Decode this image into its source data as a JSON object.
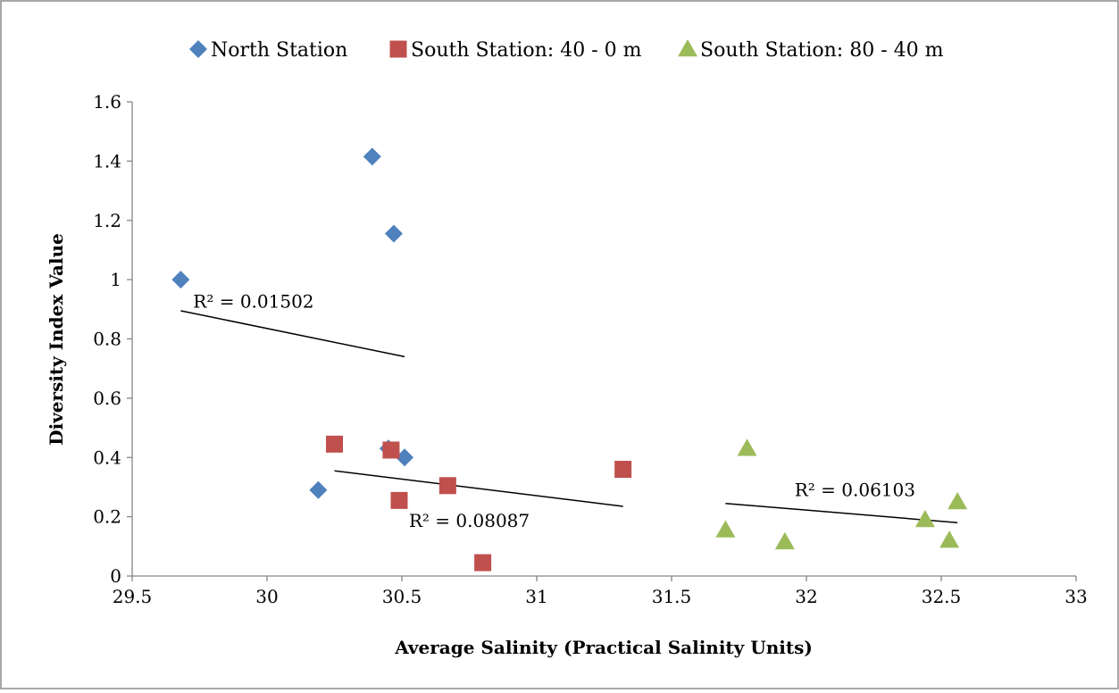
{
  "chart_data": {
    "type": "scatter",
    "xlabel": "Average Salinity (Practical Salinity Units)",
    "ylabel": "Diversity Index Value",
    "xlim": [
      29.5,
      33
    ],
    "ylim": [
      0,
      1.6
    ],
    "x_ticks": [
      "29.5",
      "30",
      "30.5",
      "31",
      "31.5",
      "32",
      "32.5",
      "33"
    ],
    "y_ticks": [
      "0",
      "0.2",
      "0.4",
      "0.6",
      "0.8",
      "1",
      "1.2",
      "1.4",
      "1.6"
    ],
    "grid": false,
    "legend_position": "top",
    "series": [
      {
        "name": "North Station",
        "marker": "diamond",
        "color": "#4F81BD",
        "points": [
          {
            "x": 29.68,
            "y": 1.0
          },
          {
            "x": 30.39,
            "y": 1.415
          },
          {
            "x": 30.47,
            "y": 1.155
          },
          {
            "x": 30.45,
            "y": 0.43
          },
          {
            "x": 30.51,
            "y": 0.4
          },
          {
            "x": 30.19,
            "y": 0.29
          }
        ],
        "trendline": {
          "x": [
            29.68,
            30.51
          ],
          "y": [
            0.895,
            0.74
          ]
        }
      },
      {
        "name": "South Station: 40 - 0 m",
        "marker": "square",
        "color": "#C0504D",
        "points": [
          {
            "x": 30.25,
            "y": 0.445
          },
          {
            "x": 30.46,
            "y": 0.425
          },
          {
            "x": 30.49,
            "y": 0.255
          },
          {
            "x": 30.67,
            "y": 0.305
          },
          {
            "x": 30.8,
            "y": 0.045
          },
          {
            "x": 31.32,
            "y": 0.36
          }
        ],
        "trendline": {
          "x": [
            30.25,
            31.32
          ],
          "y": [
            0.355,
            0.235
          ]
        }
      },
      {
        "name": "South Station: 80 - 40 m",
        "marker": "triangle",
        "color": "#9BBB59",
        "points": [
          {
            "x": 31.7,
            "y": 0.155
          },
          {
            "x": 31.78,
            "y": 0.43
          },
          {
            "x": 31.92,
            "y": 0.115
          },
          {
            "x": 32.44,
            "y": 0.19
          },
          {
            "x": 32.53,
            "y": 0.12
          },
          {
            "x": 32.56,
            "y": 0.25
          }
        ],
        "trendline": {
          "x": [
            31.7,
            32.56
          ],
          "y": [
            0.245,
            0.18
          ]
        }
      }
    ],
    "annotations": [
      {
        "text": "R² = 0.01502",
        "x": 29.95,
        "y": 0.905
      },
      {
        "text": "R² = 0.08087",
        "x": 30.75,
        "y": 0.165
      },
      {
        "text": "R² = 0.06103",
        "x": 32.18,
        "y": 0.27
      }
    ]
  }
}
